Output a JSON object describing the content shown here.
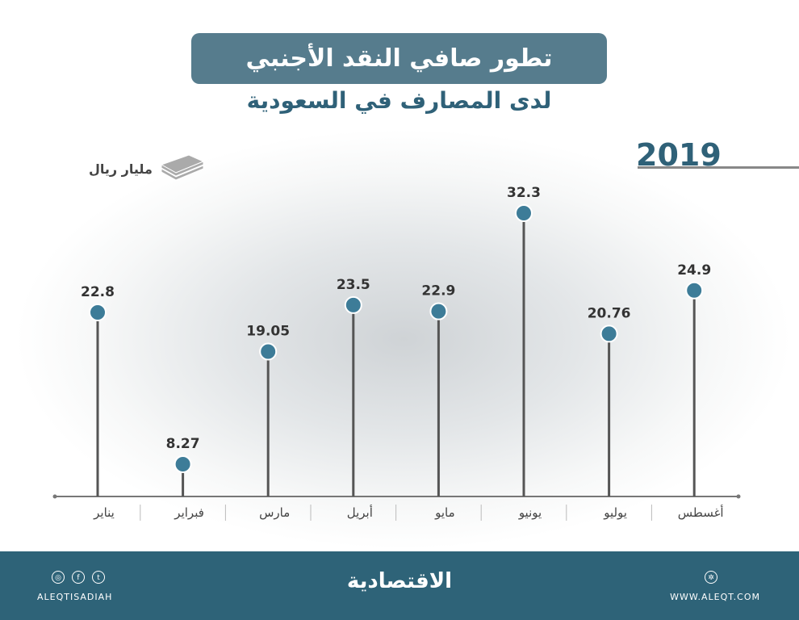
{
  "header": {
    "title": "تطور صافي النقد الأجنبي",
    "subtitle": "لدى المصارف في السعودية",
    "year": "2019",
    "unit": "مليار ريال",
    "unit_icon": "money-stack-icon"
  },
  "chart_data": {
    "type": "lollipop",
    "title": "تطور صافي النقد الأجنبي",
    "subtitle": "لدى المصارف في السعودية",
    "ylabel": "مليار ريال",
    "categories": [
      "يناير",
      "فبراير",
      "مارس",
      "أبريل",
      "مايو",
      "يونيو",
      "يوليو",
      "أغسطس"
    ],
    "values": [
      22.8,
      8.27,
      19.05,
      23.5,
      22.9,
      32.3,
      20.76,
      24.9
    ],
    "value_labels": [
      "22.8",
      "8.27",
      "19.05",
      "23.5",
      "22.9",
      "32.3",
      "20.76",
      "24.9"
    ],
    "colors": {
      "dot": "#3d7c98",
      "stem": "#555555",
      "axis": "#777777"
    },
    "grid": false
  },
  "footer": {
    "handle": "ALEQTISADIAH",
    "site": "WWW.ALEQT.COM",
    "logo": "الاقتصادية",
    "social_icons": [
      "instagram-icon",
      "facebook-icon",
      "twitter-icon"
    ],
    "web_icon": "globe-icon",
    "color": "#2e6378"
  }
}
